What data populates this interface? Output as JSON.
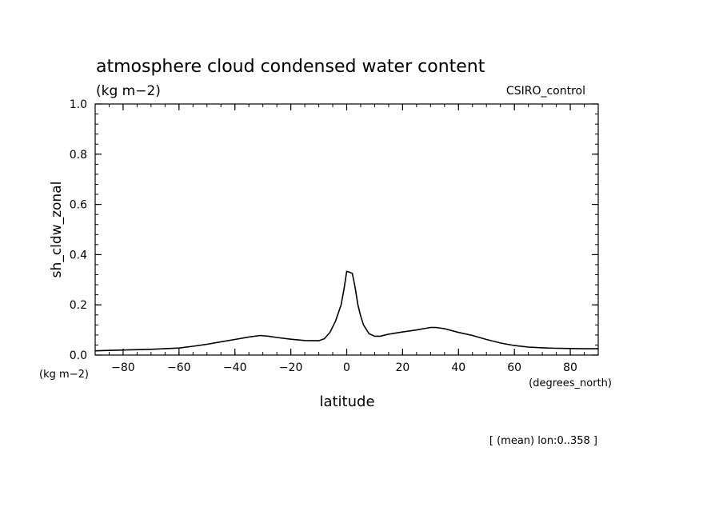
{
  "chart_data": {
    "type": "line",
    "title": "atmosphere cloud condensed water content",
    "units": "(kg m−2)",
    "dataset": "CSIRO_control",
    "ylabel": "sh_cldw_zonal",
    "ylabel_units": "(kg m−2)",
    "xlabel": "latitude",
    "xlabel_units": "(degrees_north)",
    "footnote": "[ (mean) lon:0..358 ]",
    "xlim": [
      -90,
      90
    ],
    "ylim": [
      0,
      1.0
    ],
    "xticks": [
      -80,
      -60,
      -40,
      -20,
      0,
      20,
      40,
      60,
      80
    ],
    "xtick_labels": [
      "−80",
      "−60",
      "−40",
      "−20",
      "0",
      "20",
      "40",
      "60",
      "80"
    ],
    "yticks": [
      0,
      0.2,
      0.4,
      0.6,
      0.8,
      1.0
    ],
    "ytick_labels": [
      "0.0",
      "0.2",
      "0.4",
      "0.6",
      "0.8",
      "1.0"
    ],
    "grid": false,
    "series": [
      {
        "color": "#000000",
        "x": [
          -90,
          -80,
          -70,
          -60,
          -55,
          -50,
          -45,
          -40,
          -35,
          -31,
          -28,
          -25,
          -20,
          -15,
          -10,
          -8,
          -6,
          -4,
          -2,
          -1,
          0,
          1,
          2,
          3,
          4,
          5,
          6,
          8,
          10,
          12,
          15,
          20,
          25,
          30,
          32,
          35,
          40,
          45,
          50,
          55,
          60,
          65,
          70,
          75,
          80,
          85,
          90
        ],
        "y": [
          0.017,
          0.02,
          0.023,
          0.028,
          0.035,
          0.043,
          0.053,
          0.062,
          0.072,
          0.078,
          0.075,
          0.07,
          0.063,
          0.058,
          0.057,
          0.065,
          0.09,
          0.135,
          0.2,
          0.26,
          0.333,
          0.33,
          0.325,
          0.27,
          0.2,
          0.155,
          0.12,
          0.085,
          0.075,
          0.075,
          0.083,
          0.092,
          0.1,
          0.11,
          0.11,
          0.105,
          0.09,
          0.078,
          0.062,
          0.048,
          0.038,
          0.032,
          0.029,
          0.027,
          0.026,
          0.025,
          0.025
        ]
      }
    ]
  }
}
